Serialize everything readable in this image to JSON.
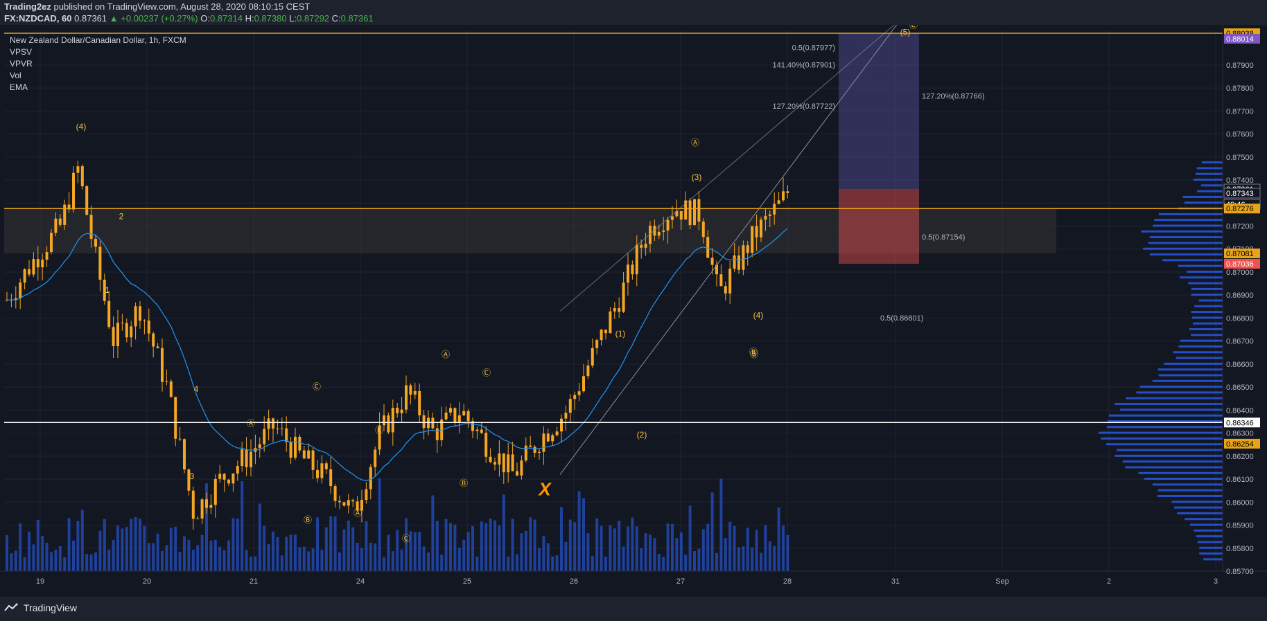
{
  "header": {
    "publisher": "Trading2ez",
    "published_text": "published on TradingView.com, August 28, 2020 08:10:15 CEST",
    "symbol": "FX:NZDCAD, 60",
    "last": "0.87361",
    "change": "+0.00237 (+0.27%)",
    "o_label": "O:",
    "o": "0.87314",
    "h_label": "H:",
    "h": "0.87380",
    "l_label": "L:",
    "l": "0.87292",
    "c_label": "C:",
    "c": "0.87361"
  },
  "legend": {
    "title": "New Zealand Dollar/Canadian Dollar, 1h, FXCM",
    "indicators": [
      "VPSV",
      "VPVR",
      "Vol",
      "EMA"
    ]
  },
  "brand": {
    "name": "TradingView"
  },
  "colors": {
    "background": "#131722",
    "candle": "#f5a623",
    "ema": "#2196f3",
    "volume": "#2962ff",
    "wave_label": "#f5c242",
    "hline_gold": "#e8a317",
    "hline_white": "#ffffff"
  },
  "chart_data": {
    "type": "candlestick",
    "title": "New Zealand Dollar/Canadian Dollar, 1h, FXCM",
    "xlabel": "",
    "ylabel": "",
    "ylim": [
      0.857,
      0.8805
    ],
    "x_ticks": [
      "19",
      "20",
      "21",
      "24",
      "25",
      "26",
      "27",
      "28",
      "31",
      "Sep",
      "2",
      "3"
    ],
    "y_ticks": [
      0.857,
      0.858,
      0.859,
      0.86,
      0.861,
      0.862,
      0.863,
      0.864,
      0.865,
      0.866,
      0.867,
      0.868,
      0.869,
      0.87,
      0.871,
      0.872,
      0.873,
      0.874,
      0.875,
      0.876,
      0.877,
      0.878,
      0.879
    ],
    "y_tick_labels": [
      "0.85700",
      "0.85800",
      "0.85900",
      "0.86000",
      "0.86100",
      "0.86200",
      "0.86300",
      "0.86400",
      "0.86500",
      "0.86600",
      "0.86700",
      "0.86800",
      "0.86900",
      "0.87000",
      "0.87100",
      "0.87200",
      "0.87300",
      "0.87400",
      "0.87500",
      "0.87600",
      "0.87700",
      "0.87800",
      "0.87900"
    ],
    "price_badges": [
      {
        "text": "0.88038",
        "value": 0.88038,
        "color": "#e8a317",
        "fg": "#000000"
      },
      {
        "text": "0.88014",
        "value": 0.88014,
        "color": "#7e57c2",
        "fg": "#ffffff"
      },
      {
        "text": "0.87361",
        "value": 0.87361,
        "color": "#131722",
        "fg": "#ffffff"
      },
      {
        "text": "49:46",
        "value": 0.87295,
        "color": "#131722",
        "fg": "#ffffff"
      },
      {
        "text": "0.87343",
        "value": 0.87343,
        "color": "#131722",
        "fg": "#ffffff"
      },
      {
        "text": "0.87276",
        "value": 0.87276,
        "color": "#e8a317",
        "fg": "#000000"
      },
      {
        "text": "0.87081",
        "value": 0.87081,
        "color": "#e8a317",
        "fg": "#000000"
      },
      {
        "text": "0.87036",
        "value": 0.87036,
        "color": "#ef5350",
        "fg": "#ffffff"
      },
      {
        "text": "0.86346",
        "value": 0.86346,
        "color": "#ffffff",
        "fg": "#000000"
      },
      {
        "text": "0.86254",
        "value": 0.86254,
        "color": "#e8a317",
        "fg": "#000000"
      }
    ],
    "horizontal_lines": [
      {
        "value": 0.88038,
        "color": "#e8a317"
      },
      {
        "value": 0.87276,
        "color": "#e8a317"
      },
      {
        "value": 0.86346,
        "color": "#ffffff"
      }
    ],
    "fib_labels": [
      {
        "text": "0.5(0.87977)"
      },
      {
        "text": "141.40%(0.87901)"
      },
      {
        "text": "127.20%(0.87722)"
      },
      {
        "text": "127.20%(0.87766)"
      },
      {
        "text": "0.5(0.87154)"
      },
      {
        "text": "0.5(0.86801)"
      }
    ],
    "wave_labels": [
      "(4)",
      "2",
      "1",
      "4",
      "3",
      "Ⓐ",
      "Ⓑ",
      "Ⓒ",
      "Ⓐ",
      "Ⓑ",
      "Ⓒ",
      "Ⓐ",
      "Ⓑ",
      "Ⓒ",
      "Ⓑ",
      "(1)",
      "(2)",
      "Ⓐ",
      "(3)",
      "(4)",
      "Ⓑ",
      "(5)",
      "Ⓒ",
      "X"
    ],
    "price_path": [
      {
        "t": "19 00:00",
        "close": 0.8688
      },
      {
        "t": "19 06:00",
        "close": 0.8705
      },
      {
        "t": "19 12:00",
        "close": 0.872
      },
      {
        "t": "19 16:00",
        "close": 0.8745
      },
      {
        "t": "19 20:00",
        "close": 0.8705
      },
      {
        "t": "20 00:00",
        "close": 0.867
      },
      {
        "t": "20 06:00",
        "close": 0.8685
      },
      {
        "t": "20 12:00",
        "close": 0.865
      },
      {
        "t": "20 18:00",
        "close": 0.8595
      },
      {
        "t": "21 00:00",
        "close": 0.861
      },
      {
        "t": "21 06:00",
        "close": 0.862
      },
      {
        "t": "21 12:00",
        "close": 0.8633
      },
      {
        "t": "21 18:00",
        "close": 0.862
      },
      {
        "t": "24 00:00",
        "close": 0.861
      },
      {
        "t": "24 06:00",
        "close": 0.8595
      },
      {
        "t": "24 12:00",
        "close": 0.863
      },
      {
        "t": "24 18:00",
        "close": 0.8648
      },
      {
        "t": "25 00:00",
        "close": 0.863
      },
      {
        "t": "25 06:00",
        "close": 0.864
      },
      {
        "t": "25 12:00",
        "close": 0.8625
      },
      {
        "t": "25 18:00",
        "close": 0.8612
      },
      {
        "t": "26 00:00",
        "close": 0.8628
      },
      {
        "t": "26 06:00",
        "close": 0.864
      },
      {
        "t": "26 12:00",
        "close": 0.8665
      },
      {
        "t": "26 18:00",
        "close": 0.869
      },
      {
        "t": "27 00:00",
        "close": 0.8718
      },
      {
        "t": "27 06:00",
        "close": 0.8728
      },
      {
        "t": "27 12:00",
        "close": 0.8725
      },
      {
        "t": "27 16:00",
        "close": 0.869
      },
      {
        "t": "28 00:00",
        "close": 0.8716
      },
      {
        "t": "28 06:00",
        "close": 0.873
      },
      {
        "t": "28 08:00",
        "close": 0.87361
      }
    ]
  }
}
